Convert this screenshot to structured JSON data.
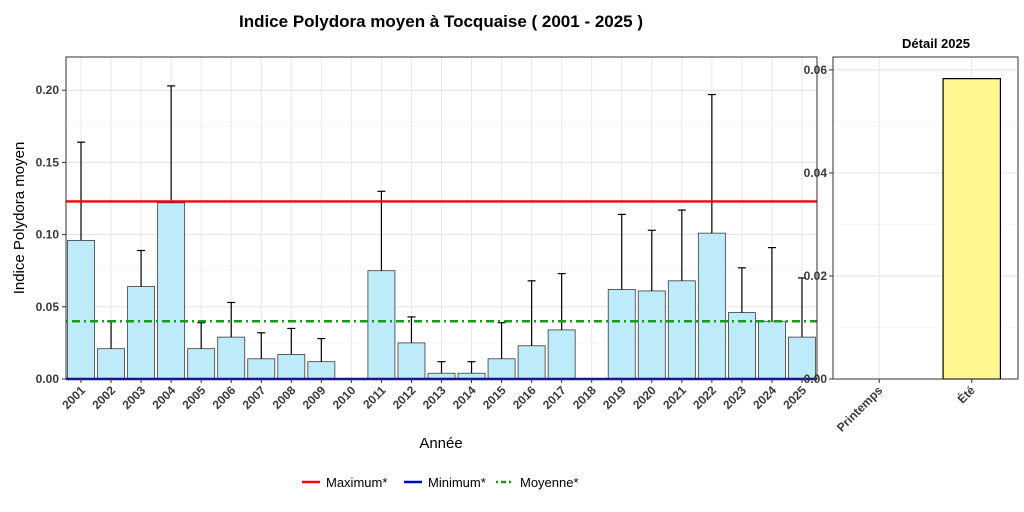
{
  "chart_data": [
    {
      "type": "bar",
      "title": "Indice Polydora moyen à Tocquaise ( 2001 - 2025 )",
      "xlabel": "Année",
      "ylabel": "Indice Polydora moyen",
      "ylim": [
        0,
        0.223
      ],
      "yticks": [
        "0.00",
        "0.05",
        "0.10",
        "0.15",
        "0.20"
      ],
      "categories": [
        "2001",
        "2002",
        "2003",
        "2004",
        "2005",
        "2006",
        "2007",
        "2008",
        "2009",
        "2010",
        "2011",
        "2012",
        "2013",
        "2014",
        "2015",
        "2016",
        "2017",
        "2018",
        "2019",
        "2020",
        "2021",
        "2022",
        "2023",
        "2024",
        "2025"
      ],
      "values": [
        0.096,
        0.021,
        0.064,
        0.122,
        0.021,
        0.029,
        0.014,
        0.017,
        0.012,
        null,
        0.075,
        0.025,
        0.004,
        0.004,
        0.014,
        0.023,
        0.034,
        null,
        0.062,
        0.061,
        0.068,
        0.101,
        0.046,
        0.04,
        0.029
      ],
      "error_upper": [
        0.164,
        0.04,
        0.089,
        0.203,
        0.039,
        0.053,
        0.032,
        0.035,
        0.028,
        null,
        0.13,
        0.043,
        0.012,
        0.012,
        0.039,
        0.068,
        0.073,
        null,
        0.114,
        0.103,
        0.117,
        0.197,
        0.077,
        0.091,
        0.07
      ],
      "bar_color": "#BEEBF9",
      "reference_lines": [
        {
          "name": "Maximum*",
          "value": 0.123,
          "color": "#FF0000",
          "style": "solid"
        },
        {
          "name": "Minimum*",
          "value": 0.0,
          "color": "#0000CC",
          "style": "solid"
        },
        {
          "name": "Moyenne*",
          "value": 0.04,
          "color": "#1A9A1A",
          "style": "dotdash"
        }
      ],
      "grid": true,
      "legend_position": "bottom"
    },
    {
      "type": "bar",
      "title": "Détail 2025",
      "ylim": [
        0,
        0.0625
      ],
      "yticks": [
        "0.00",
        "0.02",
        "0.04",
        "0.06"
      ],
      "categories": [
        "Printemps",
        "Été"
      ],
      "values": [
        0.0,
        0.0583
      ],
      "bar_color": "#FFF68F",
      "grid": true
    }
  ]
}
